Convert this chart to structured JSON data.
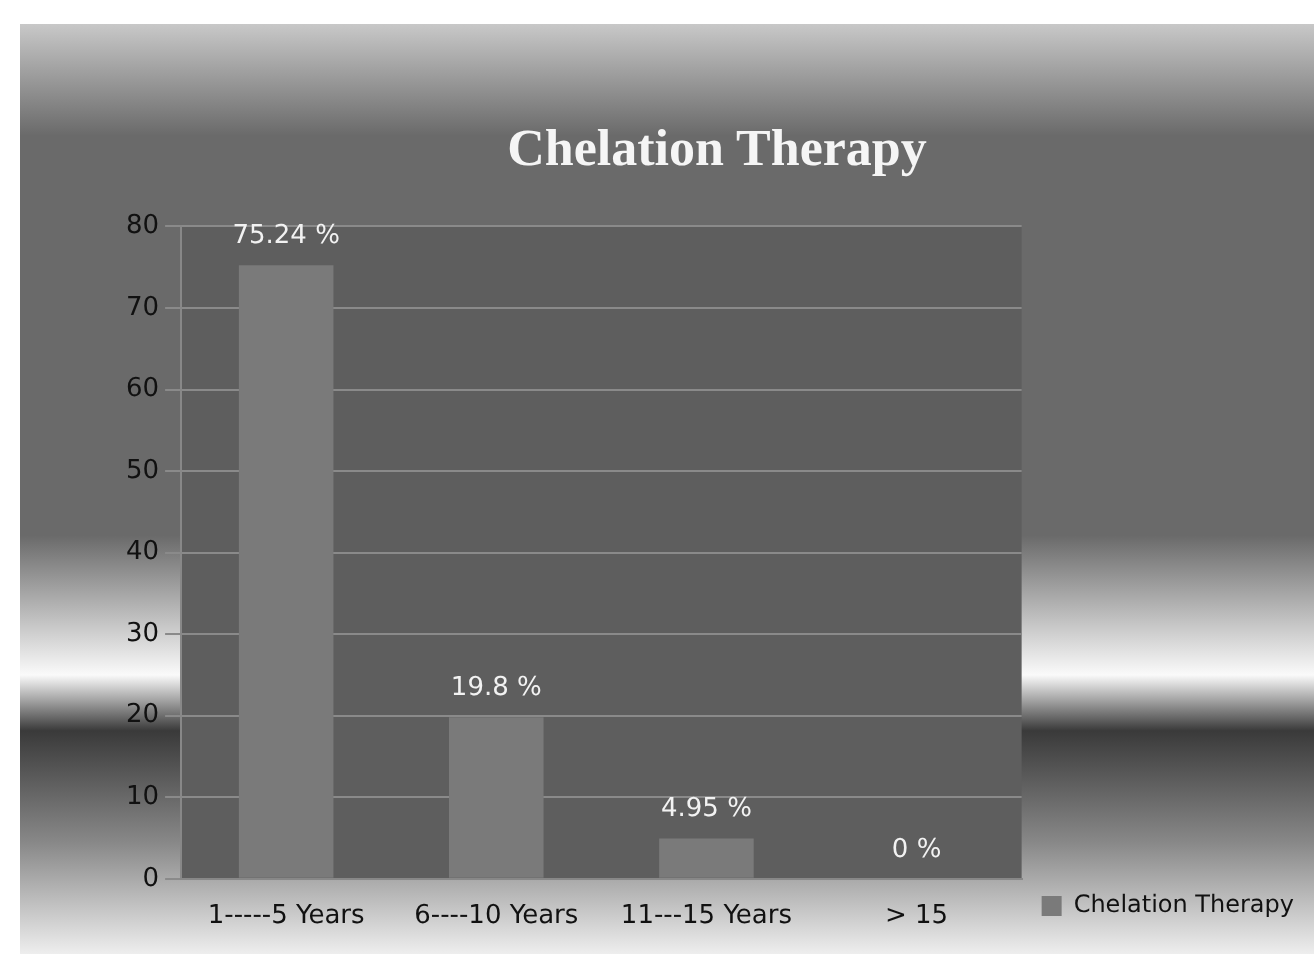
{
  "chart_data": {
    "type": "bar",
    "title": "Chelation Therapy",
    "categories": [
      "1-----5 Years",
      "6----10 Years",
      "11---15 Years",
      "> 15"
    ],
    "series": [
      {
        "name": "Chelation Therapy",
        "color": "#7a7a7a",
        "values": [
          75.24,
          19.8,
          4.95,
          0
        ],
        "value_labels": [
          "75.24 %",
          "19.8 %",
          "4.95 %",
          "0 %"
        ]
      }
    ],
    "ylim": [
      0,
      80
    ],
    "yticks": [
      0,
      10,
      20,
      30,
      40,
      50,
      60,
      70,
      80
    ],
    "grid": "y",
    "legend": "right"
  }
}
